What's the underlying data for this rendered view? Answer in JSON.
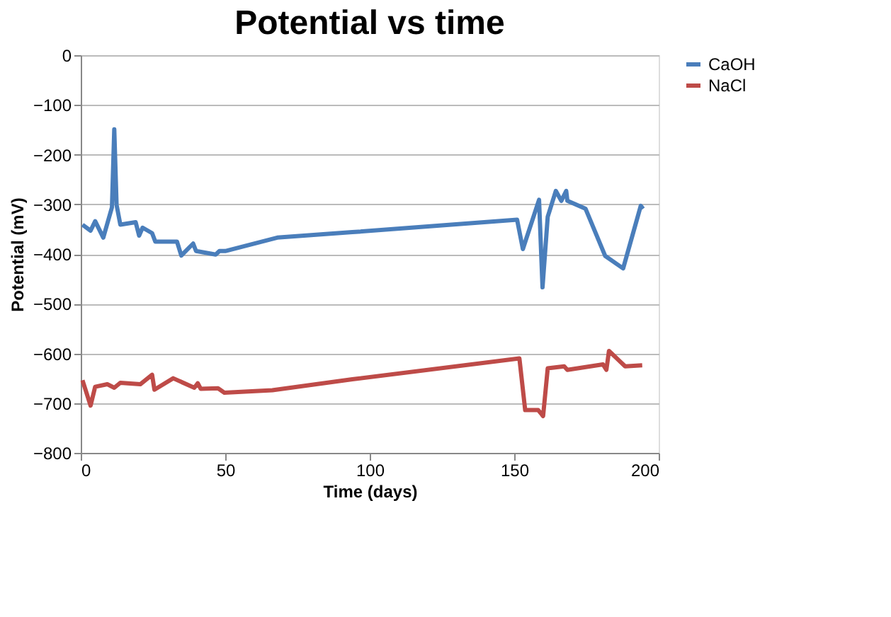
{
  "chart_data": {
    "type": "line",
    "title": "Potential vs time",
    "xlabel": "Time (days)",
    "ylabel": "Potential (mV)",
    "xlim": [
      0,
      200
    ],
    "xticks": [
      0,
      50,
      100,
      150,
      200
    ],
    "ylim": [
      -800,
      0
    ],
    "yticks": [
      -800,
      -700,
      -600,
      -500,
      -400,
      -300,
      -200,
      -100,
      0
    ],
    "grid": "y",
    "legend": "right",
    "marker": "none",
    "line_style": "solid",
    "series": [
      {
        "name": "CaOH",
        "color": "#4a7ebb",
        "x": [
          0.6,
          3.4,
          5,
          7.8,
          10.8,
          11.6,
          12.4,
          13.7,
          19,
          20.2,
          21.4,
          24.7,
          25.8,
          33.3,
          34.8,
          38.9,
          39.9,
          46.7,
          48,
          50,
          68,
          94,
          151,
          153,
          158.6,
          159.8,
          161.6,
          164.4,
          166.3,
          168,
          168.4,
          174.7,
          181.5,
          187.7,
          193.8,
          194.6
        ],
        "values": [
          -341,
          -353,
          -334,
          -367,
          -306,
          -149,
          -301,
          -341,
          -336,
          -363,
          -347,
          -358,
          -375,
          -375,
          -403,
          -379,
          -394,
          -401,
          -394,
          -394,
          -367,
          -356,
          -331,
          -390,
          -291,
          -467,
          -325,
          -273,
          -293,
          -273,
          -293,
          -309,
          -404,
          -429,
          -303,
          -309
        ]
      },
      {
        "name": "NaCl",
        "color": "#be4b48",
        "x": [
          0.6,
          3.4,
          5,
          9.2,
          11.6,
          13.7,
          20.6,
          24.7,
          25.5,
          32,
          39.3,
          40.5,
          41.5,
          47.5,
          49.7,
          66.3,
          94,
          151.8,
          153.8,
          158.3,
          160,
          161.6,
          167.3,
          168.4,
          180.7,
          181.9,
          182.8,
          188.4,
          194.3
        ],
        "values": [
          -654,
          -705,
          -667,
          -662,
          -669,
          -659,
          -662,
          -643,
          -673,
          -650,
          -669,
          -660,
          -671,
          -670,
          -679,
          -674,
          -652,
          -610,
          -714,
          -714,
          -726,
          -630,
          -626,
          -633,
          -622,
          -633,
          -595,
          -626,
          -624
        ]
      }
    ]
  }
}
